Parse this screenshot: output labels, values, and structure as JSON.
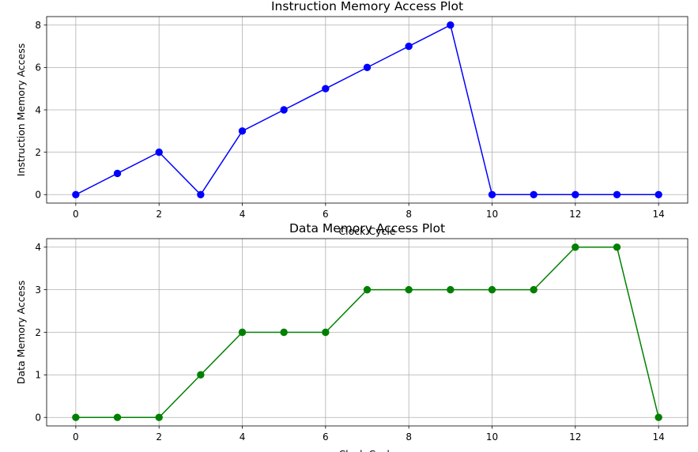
{
  "chart_data": [
    {
      "type": "line",
      "title": "Instruction Memory Access Plot",
      "xlabel": "Clock Cycle",
      "ylabel": "Instruction Memory Access",
      "x": [
        0,
        1,
        2,
        3,
        4,
        5,
        6,
        7,
        8,
        9,
        10,
        11,
        12,
        13,
        14
      ],
      "series": [
        {
          "values": [
            0,
            1,
            2,
            0,
            3,
            4,
            5,
            6,
            7,
            8,
            0,
            0,
            0,
            0,
            0
          ],
          "color": "#0000ff",
          "marker": "circle"
        }
      ],
      "xlim": [
        -0.7,
        14.7
      ],
      "ylim": [
        -0.4,
        8.4
      ],
      "xticks": [
        0,
        2,
        4,
        6,
        8,
        10,
        12,
        14
      ],
      "yticks": [
        0,
        2,
        4,
        6,
        8
      ],
      "grid": true
    },
    {
      "type": "line",
      "title": "Data Memory Access Plot",
      "xlabel": "Clock Cycle",
      "ylabel": "Data Memory Access",
      "x": [
        0,
        1,
        2,
        3,
        4,
        5,
        6,
        7,
        8,
        9,
        10,
        11,
        12,
        13,
        14
      ],
      "series": [
        {
          "values": [
            0,
            0,
            0,
            1,
            2,
            2,
            2,
            3,
            3,
            3,
            3,
            3,
            4,
            4,
            0
          ],
          "color": "#008000",
          "marker": "circle"
        }
      ],
      "xlim": [
        -0.7,
        14.7
      ],
      "ylim": [
        -0.2,
        4.2
      ],
      "xticks": [
        0,
        2,
        4,
        6,
        8,
        10,
        12,
        14
      ],
      "yticks": [
        0,
        1,
        2,
        3,
        4
      ],
      "grid": true
    }
  ]
}
